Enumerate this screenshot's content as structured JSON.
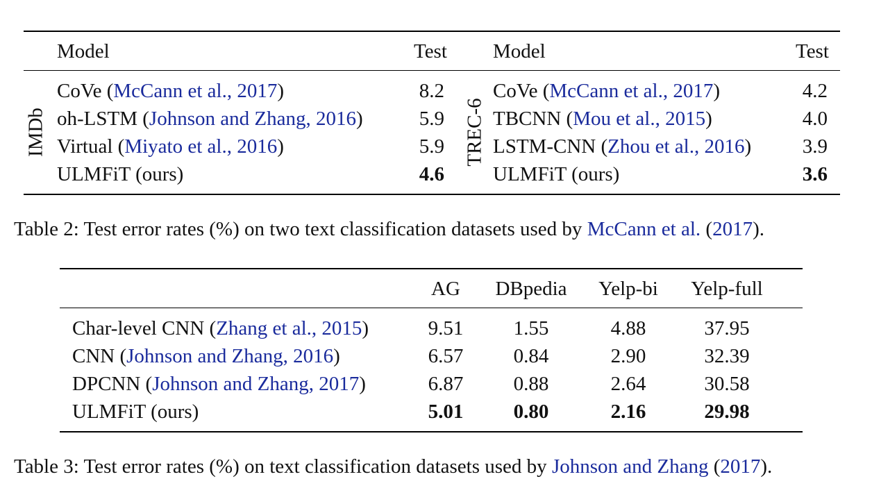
{
  "table2": {
    "left": {
      "dataset": "IMDb",
      "header": {
        "model": "Model",
        "test": "Test"
      },
      "rows": [
        {
          "name": "CoVe (",
          "cite": "McCann et al., 2017",
          "close": ")",
          "value": "8.2",
          "bold": false
        },
        {
          "name": "oh-LSTM (",
          "cite": "Johnson and Zhang, 2016",
          "close": ")",
          "value": "5.9",
          "bold": false
        },
        {
          "name": "Virtual (",
          "cite": "Miyato et al., 2016",
          "close": ")",
          "value": "5.9",
          "bold": false
        },
        {
          "name": "ULMFiT (ours)",
          "cite": "",
          "close": "",
          "value": "4.6",
          "bold": true
        }
      ]
    },
    "right": {
      "dataset": "TREC-6",
      "header": {
        "model": "Model",
        "test": "Test"
      },
      "rows": [
        {
          "name": "CoVe (",
          "cite": "McCann et al., 2017",
          "close": ")",
          "value": "4.2",
          "bold": false
        },
        {
          "name": "TBCNN (",
          "cite": "Mou et al., 2015",
          "close": ")",
          "value": "4.0",
          "bold": false
        },
        {
          "name": "LSTM-CNN (",
          "cite": "Zhou et al., 2016",
          "close": ")",
          "value": "3.9",
          "bold": false
        },
        {
          "name": "ULMFiT (ours)",
          "cite": "",
          "close": "",
          "value": "3.6",
          "bold": true
        }
      ]
    },
    "caption": {
      "prefix": "Table 2: Test error rates (%) on two text classification datasets used by ",
      "cite_name": "McCann et al.",
      "open": " (",
      "cite_year": "2017",
      "suffix": ")."
    }
  },
  "table3": {
    "headers": [
      "AG",
      "DBpedia",
      "Yelp-bi",
      "Yelp-full"
    ],
    "rows": [
      {
        "name": "Char-level CNN (",
        "cite": "Zhang et al., 2015",
        "close": ")",
        "values": [
          "9.51",
          "1.55",
          "4.88",
          "37.95"
        ],
        "bold": false
      },
      {
        "name": "CNN (",
        "cite": "Johnson and Zhang, 2016",
        "close": ")",
        "values": [
          "6.57",
          "0.84",
          "2.90",
          "32.39"
        ],
        "bold": false
      },
      {
        "name": "DPCNN (",
        "cite": "Johnson and Zhang, 2017",
        "close": ")",
        "values": [
          "6.87",
          "0.88",
          "2.64",
          "30.58"
        ],
        "bold": false
      },
      {
        "name": "ULMFiT (ours)",
        "cite": "",
        "close": "",
        "values": [
          "5.01",
          "0.80",
          "2.16",
          "29.98"
        ],
        "bold": true
      }
    ],
    "caption": {
      "prefix": "Table 3: Test error rates (%) on text classification datasets used by ",
      "cite_name": "Johnson and Zhang",
      "open": " (",
      "cite_year": "2017",
      "suffix": ")."
    }
  },
  "colors": {
    "citation": "#1a2b9c",
    "text": "#111111",
    "rule": "#000000"
  }
}
